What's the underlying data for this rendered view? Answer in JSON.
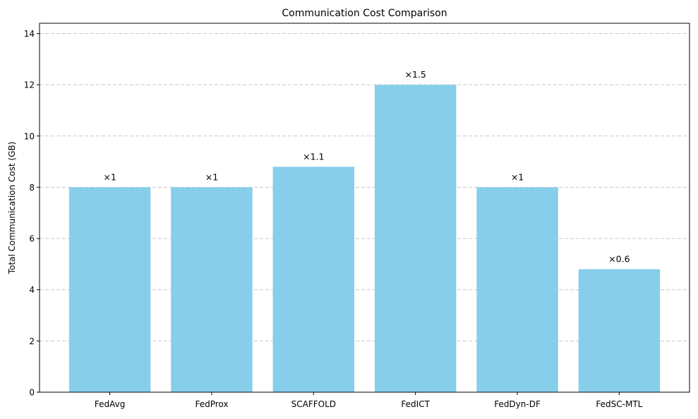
{
  "chart_data": {
    "type": "bar",
    "title": "Communication Cost Comparison",
    "xlabel": "",
    "ylabel": "Total Communication Cost (GB)",
    "categories": [
      "FedAvg",
      "FedProx",
      "SCAFFOLD",
      "FedICT",
      "FedDyn-DF",
      "FedSC-MTL"
    ],
    "values": [
      8,
      8,
      8.8,
      12,
      8,
      4.8
    ],
    "annotations": [
      "×1",
      "×1",
      "×1.1",
      "×1.5",
      "×1",
      "×0.6"
    ],
    "ylim": [
      0,
      14.4
    ],
    "yticks": [
      0,
      2,
      4,
      6,
      8,
      10,
      12,
      14
    ],
    "grid": "y-dashed",
    "bar_color": "#87CEEB",
    "grid_color": "#c8c8c8"
  }
}
